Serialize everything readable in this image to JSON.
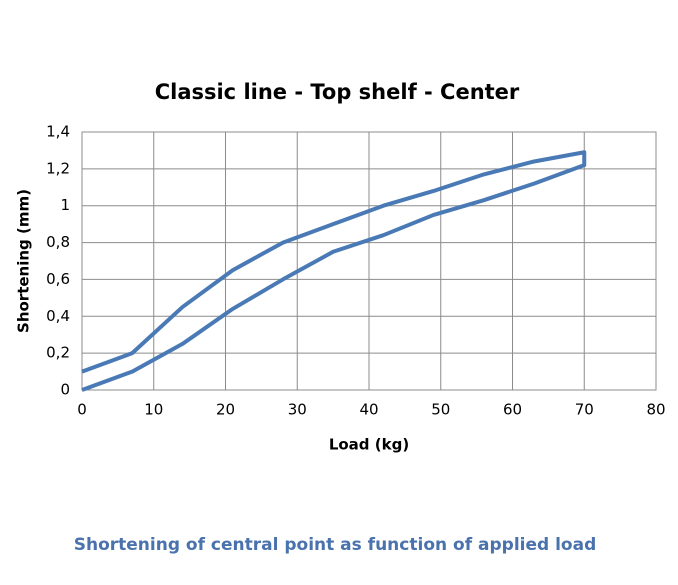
{
  "chart_data": {
    "type": "line",
    "title": "Classic line - Top shelf - Center",
    "x_label": "Load (kg)",
    "y_label": "Shortening (mm)",
    "caption": "Shortening of central point as function of applied load",
    "x": [
      0,
      7,
      14,
      21,
      28,
      35,
      42,
      49,
      56,
      63,
      70,
      70,
      63,
      56,
      49,
      42,
      35,
      28,
      21,
      14,
      7,
      0
    ],
    "values": [
      0,
      0.1,
      0.25,
      0.44,
      0.6,
      0.75,
      0.84,
      0.95,
      1.03,
      1.12,
      1.22,
      1.29,
      1.24,
      1.17,
      1.08,
      1.0,
      0.9,
      0.8,
      0.65,
      0.45,
      0.2,
      0.1
    ],
    "color": "#4a7ab5",
    "xlim": [
      0,
      80
    ],
    "xticks": [
      0,
      10,
      20,
      30,
      40,
      50,
      60,
      70,
      80
    ],
    "ylim": [
      0,
      1.4
    ],
    "yticks": [
      0,
      {
        "value": 0.2,
        "label": "0,2"
      },
      {
        "value": 0.4,
        "label": "0,4"
      },
      {
        "value": 0.6,
        "label": "0,6"
      },
      {
        "value": 0.8,
        "label": "0,8"
      },
      1,
      {
        "value": 1.2,
        "label": "1,2"
      },
      {
        "value": 1.4,
        "label": "1,4"
      }
    ],
    "grid": true
  }
}
